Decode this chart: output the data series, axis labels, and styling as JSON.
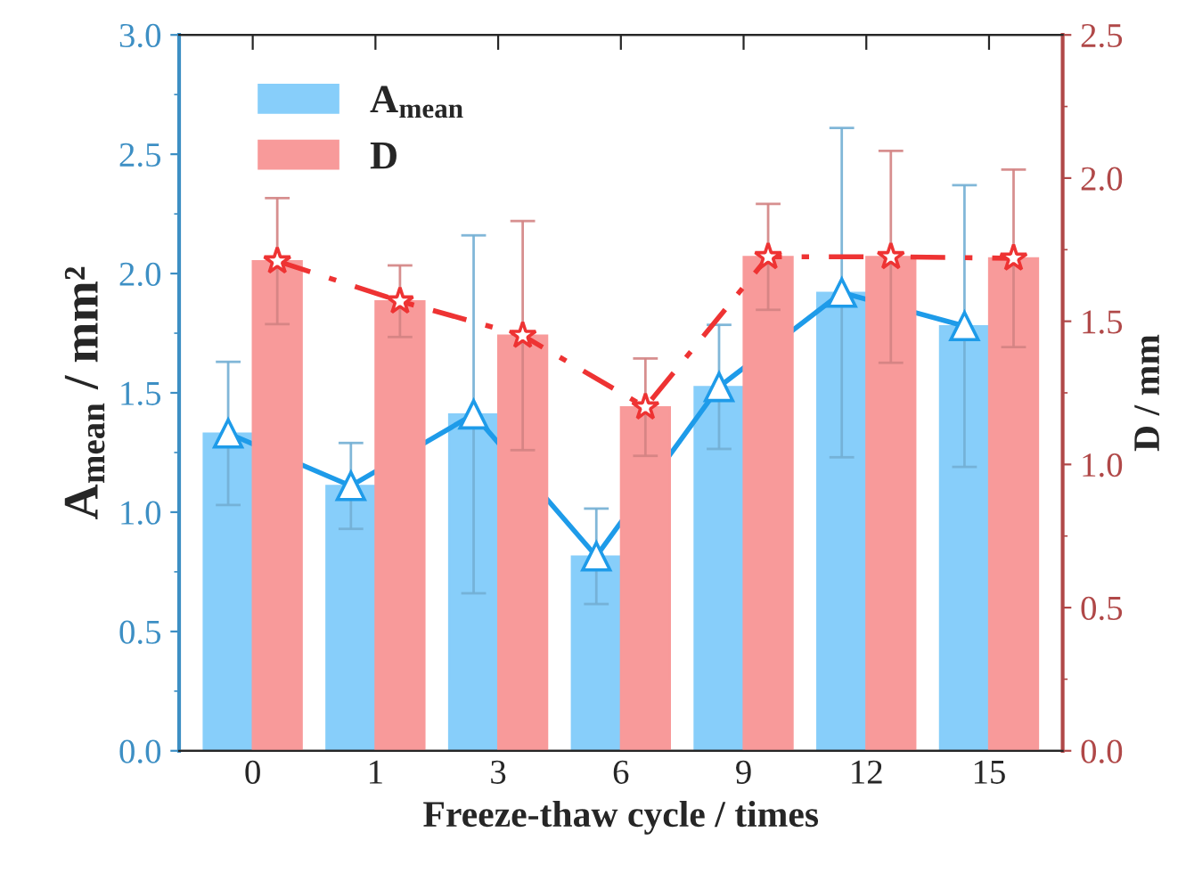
{
  "chart_data": {
    "type": "bar",
    "xlabel": "Freeze-thaw cycle / times",
    "ylabel": "A$_{mean}$ / mm²",
    "y2label": "D / mm",
    "categories": [
      "0",
      "1",
      "3",
      "6",
      "9",
      "12",
      "15"
    ],
    "series": [
      {
        "name": "A$_{mean}$",
        "color": "#87cefa",
        "values": [
          1.33,
          1.11,
          1.41,
          0.815,
          1.525,
          1.92,
          1.78
        ],
        "errors": [
          0.3,
          0.18,
          0.75,
          0.2,
          0.26,
          0.69,
          0.59
        ]
      },
      {
        "name": "D",
        "axis": "y2",
        "color": "#f89a9a",
        "values": [
          1.71,
          1.57,
          1.45,
          1.2,
          1.725,
          1.725,
          1.72
        ],
        "errors": [
          0.22,
          0.125,
          0.4,
          0.17,
          0.185,
          0.37,
          0.31
        ]
      },
      {
        "type": "line",
        "color": "#1e9be9",
        "marker": "triangle",
        "line_style": "solid",
        "values": [
          1.33,
          1.11,
          1.41,
          0.815,
          1.525,
          1.92,
          1.78
        ]
      },
      {
        "type": "line",
        "axis": "y2",
        "color": "#ee3333",
        "marker": "star",
        "line_style": "dashed",
        "values": [
          1.71,
          1.57,
          1.45,
          1.2,
          1.725,
          1.725,
          1.72
        ]
      }
    ],
    "ylim": [
      0,
      3
    ],
    "yticks": [
      {
        "value": 0,
        "label": "0.0"
      },
      0.5,
      {
        "value": 1,
        "label": "1.0"
      },
      1.5,
      {
        "value": 2,
        "label": "2.0"
      },
      2.5,
      {
        "value": 3,
        "label": "3.0"
      }
    ],
    "y2lim": [
      0,
      2.5
    ],
    "y2ticks": [
      {
        "value": 0,
        "label": "0.0"
      },
      0.5,
      {
        "value": 1,
        "label": "1.0"
      },
      1.5,
      {
        "value": 2,
        "label": "2.0"
      },
      2.5
    ],
    "legend": "top left",
    "grid": false
  }
}
